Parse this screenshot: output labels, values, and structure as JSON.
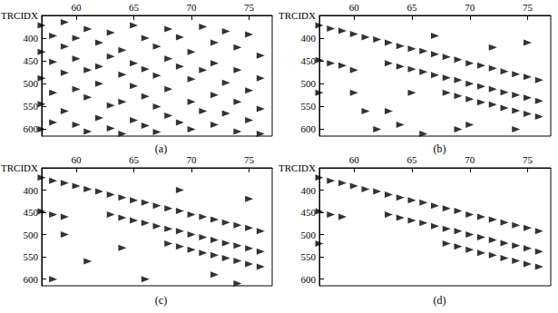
{
  "chart_data": [
    {
      "type": "scatter",
      "title": "(a)",
      "x_label": "TRCIDX",
      "marker": "triangle",
      "color": "#000000",
      "xlim": [
        57,
        77
      ],
      "xticks": [
        60,
        65,
        70,
        75
      ],
      "ylim": [
        350,
        615
      ],
      "yticks": [
        400,
        450,
        500,
        550,
        600
      ],
      "x": [
        57,
        57,
        57,
        57,
        57,
        58,
        58,
        58,
        58,
        59,
        59,
        59,
        59,
        60,
        60,
        60,
        60,
        61,
        61,
        61,
        61,
        62,
        62,
        62,
        62,
        63,
        63,
        63,
        63,
        64,
        64,
        64,
        64,
        65,
        65,
        65,
        65,
        66,
        66,
        66,
        66,
        67,
        67,
        67,
        67,
        68,
        68,
        68,
        68,
        69,
        69,
        69,
        70,
        70,
        70,
        70,
        71,
        71,
        71,
        72,
        72,
        72,
        72,
        73,
        73,
        73,
        74,
        74,
        74,
        74,
        75,
        75,
        75,
        76,
        76,
        76,
        76
      ],
      "values": [
        372,
        430,
        488,
        545,
        600,
        395,
        452,
        520,
        585,
        365,
        418,
        476,
        560,
        400,
        445,
        512,
        590,
        380,
        470,
        530,
        605,
        410,
        462,
        500,
        575,
        388,
        440,
        548,
        598,
        426,
        480,
        540,
        610,
        372,
        455,
        505,
        580,
        400,
        468,
        528,
        592,
        418,
        482,
        550,
        606,
        380,
        445,
        512,
        570,
        398,
        462,
        585,
        430,
        490,
        540,
        600,
        375,
        470,
        560,
        410,
        455,
        525,
        590,
        385,
        498,
        565,
        420,
        470,
        540,
        605,
        392,
        515,
        580,
        438,
        488,
        555,
        610
      ]
    },
    {
      "type": "scatter",
      "title": "(b)",
      "x_label": "TRCIDX",
      "marker": "triangle",
      "color": "#000000",
      "xlim": [
        57,
        77
      ],
      "xticks": [
        60,
        65,
        70,
        75
      ],
      "ylim": [
        350,
        615
      ],
      "yticks": [
        400,
        450,
        500,
        550,
        600
      ],
      "x": [
        57,
        58,
        59,
        60,
        61,
        62,
        63,
        64,
        65,
        66,
        67,
        68,
        69,
        70,
        71,
        72,
        73,
        74,
        75,
        76,
        63,
        64,
        65,
        66,
        67,
        68,
        69,
        70,
        71,
        72,
        73,
        74,
        75,
        76,
        68,
        69,
        70,
        71,
        72,
        73,
        74,
        75,
        76,
        57,
        58,
        59,
        60,
        61,
        62,
        64,
        66,
        67,
        69,
        72,
        74,
        57,
        60,
        63,
        65,
        70,
        75
      ],
      "values": [
        372,
        379,
        384,
        391,
        398,
        403,
        410,
        417,
        423,
        428,
        435,
        441,
        447,
        455,
        460,
        466,
        473,
        479,
        485,
        492,
        455,
        462,
        468,
        474,
        481,
        487,
        492,
        500,
        506,
        512,
        519,
        525,
        531,
        538,
        520,
        527,
        534,
        541,
        546,
        553,
        559,
        566,
        572,
        448,
        455,
        460,
        520,
        560,
        600,
        590,
        610,
        395,
        600,
        420,
        600,
        520,
        470,
        560,
        520,
        590,
        410
      ],
      "line_style": "solid"
    },
    {
      "type": "scatter",
      "title": "(c)",
      "x_label": "TRCIDX",
      "marker": "triangle",
      "color": "#000000",
      "xlim": [
        57,
        77
      ],
      "xticks": [
        60,
        65,
        70,
        75
      ],
      "ylim": [
        350,
        615
      ],
      "yticks": [
        400,
        450,
        500,
        550,
        600
      ],
      "x": [
        57,
        58,
        59,
        60,
        61,
        62,
        63,
        64,
        65,
        66,
        67,
        68,
        69,
        70,
        71,
        72,
        73,
        74,
        75,
        76,
        63,
        64,
        65,
        66,
        67,
        68,
        69,
        70,
        71,
        72,
        73,
        74,
        75,
        76,
        68,
        69,
        70,
        71,
        72,
        73,
        74,
        75,
        76,
        57,
        58,
        59,
        58,
        61,
        64,
        66,
        72,
        75,
        59,
        69,
        74
      ],
      "values": [
        372,
        379,
        384,
        391,
        398,
        403,
        410,
        417,
        423,
        428,
        435,
        441,
        447,
        455,
        460,
        466,
        473,
        479,
        485,
        492,
        455,
        462,
        468,
        474,
        481,
        487,
        492,
        500,
        506,
        512,
        519,
        525,
        531,
        538,
        520,
        527,
        534,
        541,
        546,
        553,
        559,
        566,
        572,
        448,
        455,
        460,
        600,
        560,
        530,
        600,
        590,
        420,
        500,
        400,
        610
      ]
    },
    {
      "type": "scatter",
      "title": "(d)",
      "x_label": "TRCIDX",
      "marker": "triangle",
      "color": "#000000",
      "xlim": [
        57,
        77
      ],
      "xticks": [
        60,
        65,
        70,
        75
      ],
      "ylim": [
        350,
        615
      ],
      "yticks": [
        400,
        450,
        500,
        550,
        600
      ],
      "x": [
        57,
        58,
        59,
        60,
        61,
        62,
        63,
        64,
        65,
        66,
        67,
        68,
        69,
        70,
        71,
        72,
        73,
        74,
        75,
        76,
        63,
        64,
        65,
        66,
        67,
        68,
        69,
        70,
        71,
        72,
        73,
        74,
        75,
        76,
        68,
        69,
        70,
        71,
        72,
        73,
        74,
        75,
        76,
        57,
        58,
        59,
        57
      ],
      "values": [
        372,
        379,
        384,
        391,
        398,
        403,
        410,
        417,
        423,
        428,
        435,
        441,
        447,
        455,
        460,
        466,
        473,
        479,
        485,
        492,
        455,
        462,
        468,
        474,
        481,
        487,
        492,
        500,
        506,
        512,
        519,
        525,
        531,
        538,
        520,
        527,
        534,
        541,
        546,
        553,
        559,
        566,
        572,
        448,
        455,
        460,
        520
      ]
    }
  ]
}
